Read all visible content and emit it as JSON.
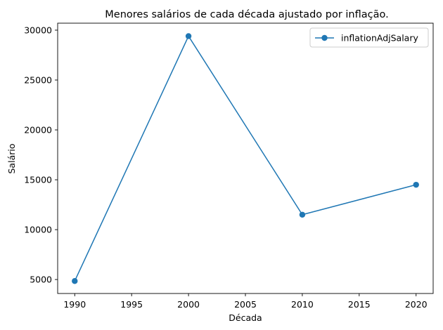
{
  "chart_data": {
    "type": "line",
    "title": "Menores salários de cada década ajustado por inflação.",
    "xlabel": "Década",
    "ylabel": "Salário",
    "x": [
      1990,
      2000,
      2010,
      2020
    ],
    "series": [
      {
        "name": "inflationAdjSalary",
        "values": [
          4850,
          29400,
          11500,
          14500
        ],
        "color": "#1f77b4"
      }
    ],
    "xlim": [
      1988.5,
      2021.5
    ],
    "ylim": [
      3600,
      30700
    ],
    "xticks": [
      1990,
      1995,
      2000,
      2005,
      2010,
      2015,
      2020
    ],
    "yticks": [
      5000,
      10000,
      15000,
      20000,
      25000,
      30000
    ],
    "grid": false,
    "legend_position": "top-right"
  }
}
